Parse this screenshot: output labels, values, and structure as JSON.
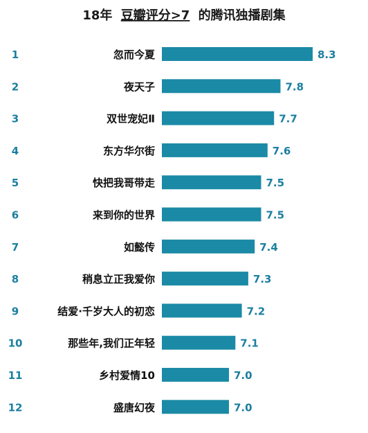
{
  "chart_data": {
    "type": "bar",
    "orientation": "horizontal",
    "title": {
      "prefix": "18年",
      "underlined": "豆瓣评分>7",
      "suffix": "的腾讯独播剧集"
    },
    "ranks": [
      "1",
      "2",
      "3",
      "4",
      "5",
      "6",
      "7",
      "8",
      "9",
      "10",
      "11",
      "12"
    ],
    "categories": [
      "忽而今夏",
      "夜天子",
      "双世宠妃Ⅱ",
      "东方华尔街",
      "快把我哥带走",
      "来到你的世界",
      "如懿传",
      "稍息立正我爱你",
      "结爱·千岁大人的初恋",
      "那些年,我们正年轻",
      "乡村爱情10",
      "盛唐幻夜"
    ],
    "values": [
      8.3,
      7.8,
      7.7,
      7.6,
      7.5,
      7.5,
      7.4,
      7.3,
      7.2,
      7.1,
      7.0,
      7.0
    ],
    "value_labels": [
      "8.3",
      "7.8",
      "7.7",
      "7.6",
      "7.5",
      "7.5",
      "7.4",
      "7.3",
      "7.2",
      "7.1",
      "7.0",
      "7.0"
    ],
    "bar_color": "#1b8aa6",
    "rank_color": "#1b7fa0",
    "value_color": "#1b7fa0",
    "grid": false,
    "legend": "none"
  }
}
